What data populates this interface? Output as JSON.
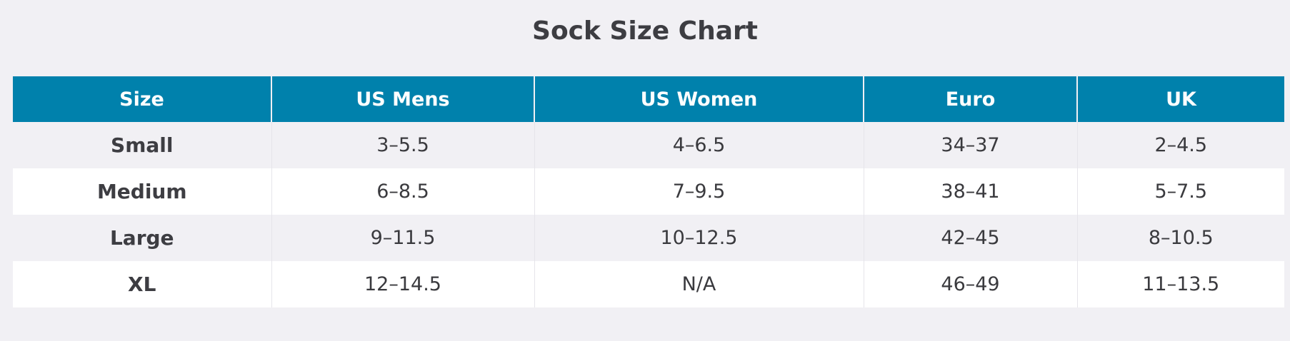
{
  "title": "Sock Size Chart",
  "table": {
    "headers": [
      "Size",
      "US Mens",
      "US Women",
      "Euro",
      "UK"
    ],
    "rows": [
      [
        "Small",
        "3–5.5",
        "4–6.5",
        "34–37",
        "2–4.5"
      ],
      [
        "Medium",
        "6–8.5",
        "7–9.5",
        "38–41",
        "5–7.5"
      ],
      [
        "Large",
        "9–11.5",
        "10–12.5",
        "42–45",
        "8–10.5"
      ],
      [
        "XL",
        "12–14.5",
        "N/A",
        "46–49",
        "11–13.5"
      ]
    ]
  },
  "colors": {
    "header_bg": "#0081ac",
    "header_text": "#ffffff",
    "page_bg": "#f1f0f4",
    "row_alt_bg": "#ffffff"
  }
}
